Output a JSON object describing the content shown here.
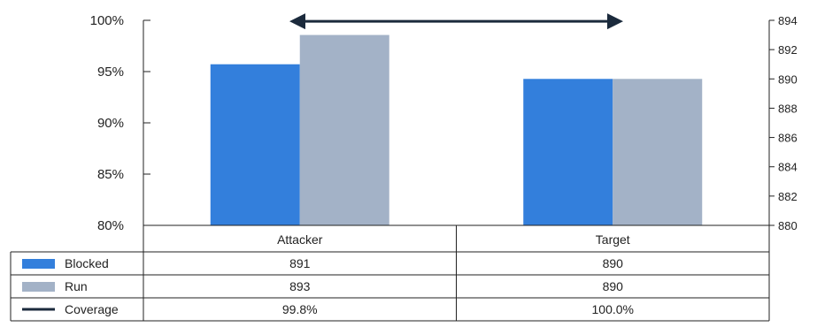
{
  "chart_data": {
    "type": "bar",
    "categories": [
      "Attacker",
      "Target"
    ],
    "series": [
      {
        "name": "Blocked",
        "values": [
          891,
          890
        ],
        "color": "#337fdc",
        "axis": "right"
      },
      {
        "name": "Run",
        "values": [
          893,
          890
        ],
        "color": "#a3b2c7",
        "axis": "right"
      },
      {
        "name": "Coverage",
        "values": [
          99.8,
          100.0
        ],
        "color": "#1b2a3c",
        "type": "line",
        "axis": "left"
      }
    ],
    "left_axis": {
      "ylim": [
        80,
        100
      ],
      "ticks": [
        "100%",
        "95%",
        "90%",
        "85%",
        "80%"
      ],
      "tick_values": [
        100,
        95,
        90,
        85,
        80
      ]
    },
    "right_axis": {
      "ylim": [
        880,
        894
      ],
      "ticks": [
        "894",
        "892",
        "890",
        "888",
        "886",
        "884",
        "882",
        "880"
      ],
      "tick_values": [
        894,
        892,
        890,
        888,
        886,
        884,
        882,
        880
      ]
    },
    "table": {
      "rows": [
        {
          "label": "Blocked",
          "cells": [
            "891",
            "890"
          ]
        },
        {
          "label": "Run",
          "cells": [
            "893",
            "890"
          ]
        },
        {
          "label": "Coverage",
          "cells": [
            "99.8%",
            "100.0%"
          ]
        }
      ]
    },
    "legend_placement": "table-left",
    "grid": false
  }
}
